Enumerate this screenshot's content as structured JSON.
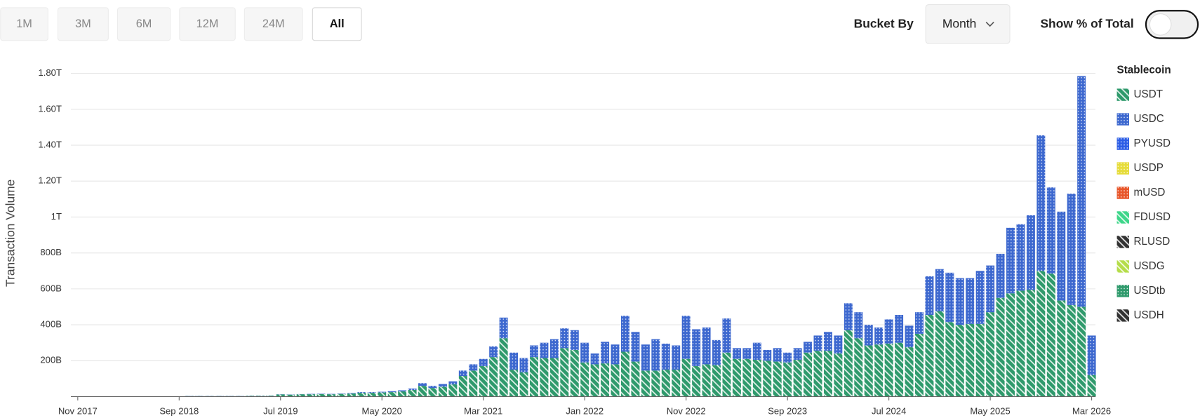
{
  "controls": {
    "ranges": [
      "1M",
      "3M",
      "6M",
      "12M",
      "24M",
      "All"
    ],
    "bucket_label": "Bucket By",
    "bucket_value": "Month",
    "toggle_label": "Show % of Total"
  },
  "chart_data": {
    "type": "stacked-bar",
    "y_label": "Transaction Volume",
    "legend_title": "Stablecoin",
    "grid": true,
    "legend_position": "right",
    "categories": [
      "Nov 2017",
      null,
      null,
      null,
      null,
      null,
      null,
      null,
      null,
      null,
      "Sep 2018",
      null,
      null,
      null,
      null,
      null,
      null,
      null,
      null,
      null,
      "Jul 2019",
      null,
      null,
      null,
      null,
      null,
      null,
      null,
      null,
      null,
      "May 2020",
      null,
      null,
      null,
      null,
      null,
      null,
      null,
      null,
      null,
      "Mar 2021",
      null,
      null,
      null,
      null,
      null,
      null,
      null,
      null,
      null,
      "Jan 2022",
      null,
      null,
      null,
      null,
      null,
      null,
      null,
      null,
      null,
      "Nov 2022",
      null,
      null,
      null,
      null,
      null,
      null,
      null,
      null,
      null,
      "Sep 2023",
      null,
      null,
      null,
      null,
      null,
      null,
      null,
      null,
      null,
      "Jul 2024",
      null,
      null,
      null,
      null,
      null,
      null,
      null,
      null,
      null,
      "May 2025",
      null,
      null,
      null,
      null,
      null,
      null,
      null,
      null,
      null,
      "Mar 2026"
    ],
    "ylim": [
      0,
      1800
    ],
    "yticks": [
      {
        "value": 200,
        "label": "200B"
      },
      {
        "value": 400,
        "label": "400B"
      },
      {
        "value": 600,
        "label": "600B"
      },
      {
        "value": 800,
        "label": "800B"
      },
      {
        "value": 1000,
        "label": "1T"
      },
      {
        "value": 1200,
        "label": "1.20T"
      },
      {
        "value": 1400,
        "label": "1.40T"
      },
      {
        "value": 1600,
        "label": "1.60T"
      },
      {
        "value": 1800,
        "label": "1.80T"
      }
    ],
    "series": [
      {
        "name": "USDT",
        "color": "#2f9a6c",
        "pattern": "hatch",
        "values": [
          1,
          1,
          1,
          2,
          2,
          2,
          2,
          2,
          2,
          2,
          2,
          3,
          3,
          3,
          3,
          3,
          3,
          4,
          4,
          5,
          12,
          11,
          13,
          13,
          14,
          13,
          15,
          17,
          21,
          21,
          23,
          25,
          29,
          37,
          60,
          48,
          55,
          68,
          115,
          145,
          170,
          220,
          325,
          150,
          135,
          220,
          215,
          215,
          270,
          260,
          190,
          180,
          185,
          180,
          250,
          195,
          145,
          145,
          150,
          150,
          210,
          170,
          180,
          175,
          245,
          210,
          210,
          205,
          200,
          195,
          190,
          205,
          245,
          255,
          255,
          240,
          370,
          325,
          285,
          290,
          295,
          300,
          275,
          350,
          455,
          475,
          415,
          400,
          405,
          405,
          470,
          550,
          575,
          590,
          595,
          700,
          685,
          535,
          510,
          500,
          120
        ]
      },
      {
        "name": "USDC",
        "color": "#3d68cf",
        "pattern": "grid",
        "values": [
          0,
          0,
          0,
          0,
          0,
          0,
          0,
          0,
          0,
          0,
          0,
          1,
          1,
          1,
          1,
          1,
          1,
          1,
          1,
          1,
          1,
          1,
          1,
          2,
          2,
          2,
          2,
          3,
          4,
          4,
          4,
          5,
          6,
          8,
          15,
          12,
          15,
          17,
          30,
          35,
          40,
          60,
          115,
          95,
          80,
          65,
          85,
          105,
          110,
          110,
          110,
          60,
          120,
          110,
          200,
          165,
          145,
          175,
          145,
          135,
          240,
          205,
          205,
          140,
          190,
          60,
          60,
          95,
          60,
          75,
          55,
          65,
          60,
          85,
          105,
          100,
          150,
          145,
          115,
          95,
          135,
          155,
          120,
          120,
          215,
          235,
          275,
          260,
          255,
          295,
          260,
          245,
          365,
          370,
          415,
          755,
          480,
          495,
          620,
          1285,
          220
        ]
      },
      {
        "name": "PYUSD",
        "color": "#2d5ee6",
        "pattern": "grid",
        "values": [
          0,
          0,
          0,
          0,
          0,
          0,
          0,
          0,
          0,
          0,
          0,
          0,
          0,
          0,
          0,
          0,
          0,
          0,
          0,
          0,
          0,
          0,
          0,
          0,
          0,
          0,
          0,
          0,
          0,
          0,
          0,
          0,
          0,
          0,
          0,
          0,
          0,
          0,
          0,
          0,
          0,
          0,
          0,
          0,
          0,
          0,
          0,
          0,
          0,
          0,
          0,
          0,
          0,
          0,
          0,
          0,
          0,
          0,
          0,
          0,
          0,
          0,
          0,
          0,
          0,
          0,
          0,
          0,
          0,
          0,
          0,
          0,
          0,
          0,
          0,
          0,
          0,
          0,
          0,
          0,
          0,
          0,
          0,
          0,
          0,
          0,
          0,
          0,
          0,
          0,
          0,
          0,
          0,
          0,
          0,
          0,
          0,
          0,
          0,
          0,
          0
        ]
      },
      {
        "name": "USDP",
        "color": "#e6dc3a",
        "pattern": "grid",
        "values": [
          0,
          0,
          0,
          0,
          0,
          0,
          0,
          0,
          0,
          0,
          0,
          0,
          0,
          0,
          0,
          0,
          0,
          0,
          0,
          0,
          0,
          0,
          0,
          0,
          0,
          0,
          0,
          0,
          0,
          0,
          0,
          0,
          0,
          0,
          0,
          0,
          0,
          0,
          0,
          0,
          0,
          0,
          0,
          0,
          0,
          0,
          0,
          0,
          0,
          0,
          0,
          0,
          0,
          0,
          0,
          0,
          0,
          0,
          0,
          0,
          0,
          0,
          0,
          0,
          0,
          0,
          0,
          0,
          0,
          0,
          0,
          0,
          0,
          0,
          0,
          0,
          0,
          0,
          0,
          0,
          0,
          0,
          0,
          0,
          0,
          0,
          0,
          0,
          0,
          0,
          0,
          0,
          0,
          0,
          0,
          0,
          0,
          0,
          0,
          0,
          0
        ]
      },
      {
        "name": "mUSD",
        "color": "#e8562a",
        "pattern": "grid",
        "values": [
          0,
          0,
          0,
          0,
          0,
          0,
          0,
          0,
          0,
          0,
          0,
          0,
          0,
          0,
          0,
          0,
          0,
          0,
          0,
          0,
          0,
          0,
          0,
          0,
          0,
          0,
          0,
          0,
          0,
          0,
          0,
          0,
          0,
          0,
          0,
          0,
          0,
          0,
          0,
          0,
          0,
          0,
          0,
          0,
          0,
          0,
          0,
          0,
          0,
          0,
          0,
          0,
          0,
          0,
          0,
          0,
          0,
          0,
          0,
          0,
          0,
          0,
          0,
          0,
          0,
          0,
          0,
          0,
          0,
          0,
          0,
          0,
          0,
          0,
          0,
          0,
          0,
          0,
          0,
          0,
          0,
          0,
          0,
          0,
          0,
          0,
          0,
          0,
          0,
          0,
          0,
          0,
          0,
          0,
          0,
          0,
          0,
          0,
          0,
          0,
          0
        ]
      },
      {
        "name": "FDUSD",
        "color": "#3ed68a",
        "pattern": "hatch",
        "values": [
          0,
          0,
          0,
          0,
          0,
          0,
          0,
          0,
          0,
          0,
          0,
          0,
          0,
          0,
          0,
          0,
          0,
          0,
          0,
          0,
          0,
          0,
          0,
          0,
          0,
          0,
          0,
          0,
          0,
          0,
          0,
          0,
          0,
          0,
          0,
          0,
          0,
          0,
          0,
          0,
          0,
          0,
          0,
          0,
          0,
          0,
          0,
          0,
          0,
          0,
          0,
          0,
          0,
          0,
          0,
          0,
          0,
          0,
          0,
          0,
          0,
          0,
          0,
          0,
          0,
          0,
          0,
          0,
          0,
          0,
          0,
          0,
          0,
          0,
          0,
          0,
          0,
          0,
          0,
          0,
          0,
          0,
          0,
          0,
          0,
          0,
          0,
          0,
          0,
          0,
          0,
          0,
          0,
          0,
          0,
          0,
          0,
          0,
          0,
          0,
          0
        ]
      },
      {
        "name": "RLUSD",
        "color": "#333333",
        "pattern": "hatch",
        "values": [
          0,
          0,
          0,
          0,
          0,
          0,
          0,
          0,
          0,
          0,
          0,
          0,
          0,
          0,
          0,
          0,
          0,
          0,
          0,
          0,
          0,
          0,
          0,
          0,
          0,
          0,
          0,
          0,
          0,
          0,
          0,
          0,
          0,
          0,
          0,
          0,
          0,
          0,
          0,
          0,
          0,
          0,
          0,
          0,
          0,
          0,
          0,
          0,
          0,
          0,
          0,
          0,
          0,
          0,
          0,
          0,
          0,
          0,
          0,
          0,
          0,
          0,
          0,
          0,
          0,
          0,
          0,
          0,
          0,
          0,
          0,
          0,
          0,
          0,
          0,
          0,
          0,
          0,
          0,
          0,
          0,
          0,
          0,
          0,
          0,
          0,
          0,
          0,
          0,
          0,
          0,
          0,
          0,
          0,
          0,
          0,
          0,
          0,
          0,
          0,
          0
        ]
      },
      {
        "name": "USDG",
        "color": "#b5dd4a",
        "pattern": "hatch",
        "values": [
          0,
          0,
          0,
          0,
          0,
          0,
          0,
          0,
          0,
          0,
          0,
          0,
          0,
          0,
          0,
          0,
          0,
          0,
          0,
          0,
          0,
          0,
          0,
          0,
          0,
          0,
          0,
          0,
          0,
          0,
          0,
          0,
          0,
          0,
          0,
          0,
          0,
          0,
          0,
          0,
          0,
          0,
          0,
          0,
          0,
          0,
          0,
          0,
          0,
          0,
          0,
          0,
          0,
          0,
          0,
          0,
          0,
          0,
          0,
          0,
          0,
          0,
          0,
          0,
          0,
          0,
          0,
          0,
          0,
          0,
          0,
          0,
          0,
          0,
          0,
          0,
          0,
          0,
          0,
          0,
          0,
          0,
          0,
          0,
          0,
          0,
          0,
          0,
          0,
          0,
          0,
          0,
          0,
          0,
          0,
          0,
          0,
          0,
          0,
          0,
          0
        ]
      },
      {
        "name": "USDtb",
        "color": "#2f9a6c",
        "pattern": "grid",
        "values": [
          0,
          0,
          0,
          0,
          0,
          0,
          0,
          0,
          0,
          0,
          0,
          0,
          0,
          0,
          0,
          0,
          0,
          0,
          0,
          0,
          0,
          0,
          0,
          0,
          0,
          0,
          0,
          0,
          0,
          0,
          0,
          0,
          0,
          0,
          0,
          0,
          0,
          0,
          0,
          0,
          0,
          0,
          0,
          0,
          0,
          0,
          0,
          0,
          0,
          0,
          0,
          0,
          0,
          0,
          0,
          0,
          0,
          0,
          0,
          0,
          0,
          0,
          0,
          0,
          0,
          0,
          0,
          0,
          0,
          0,
          0,
          0,
          0,
          0,
          0,
          0,
          0,
          0,
          0,
          0,
          0,
          0,
          0,
          0,
          0,
          0,
          0,
          0,
          0,
          0,
          0,
          0,
          0,
          0,
          0,
          0,
          0,
          0,
          0,
          0,
          0
        ]
      },
      {
        "name": "USDH",
        "color": "#333333",
        "pattern": "hatch",
        "values": [
          0,
          0,
          0,
          0,
          0,
          0,
          0,
          0,
          0,
          0,
          0,
          0,
          0,
          0,
          0,
          0,
          0,
          0,
          0,
          0,
          0,
          0,
          0,
          0,
          0,
          0,
          0,
          0,
          0,
          0,
          0,
          0,
          0,
          0,
          0,
          0,
          0,
          0,
          0,
          0,
          0,
          0,
          0,
          0,
          0,
          0,
          0,
          0,
          0,
          0,
          0,
          0,
          0,
          0,
          0,
          0,
          0,
          0,
          0,
          0,
          0,
          0,
          0,
          0,
          0,
          0,
          0,
          0,
          0,
          0,
          0,
          0,
          0,
          0,
          0,
          0,
          0,
          0,
          0,
          0,
          0,
          0,
          0,
          0,
          0,
          0,
          0,
          0,
          0,
          0,
          0,
          0,
          0,
          0,
          0,
          0,
          0,
          0,
          0,
          0,
          0
        ]
      }
    ]
  }
}
